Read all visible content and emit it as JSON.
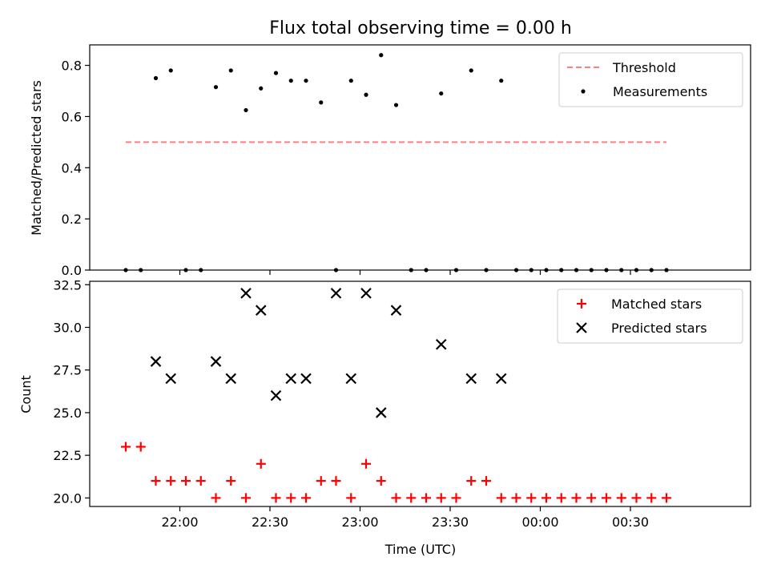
{
  "chart_data": [
    {
      "type": "scatter",
      "title": "Flux total observing time = 0.00 h",
      "ylabel": "Matched/Predicted stars",
      "ylim": [
        0,
        0.88
      ],
      "yticks": [
        "0.0",
        "0.2",
        "0.4",
        "0.6",
        "0.8"
      ],
      "ytick_values": [
        0,
        0.2,
        0.4,
        0.6,
        0.8
      ],
      "xlim": [
        "21:30",
        "01:10"
      ],
      "legend_position": "upper right",
      "series": [
        {
          "name": "Threshold",
          "kind": "line",
          "style": "dashed",
          "color": "#ff7f7f",
          "x": [
            "21:42",
            "00:42"
          ],
          "y": [
            0.5,
            0.5
          ]
        },
        {
          "name": "Measurements",
          "kind": "scatter",
          "marker": "dot",
          "color": "#000000",
          "x": [
            "21:42",
            "21:47",
            "21:52",
            "21:57",
            "22:02",
            "22:07",
            "22:12",
            "22:17",
            "22:22",
            "22:27",
            "22:32",
            "22:37",
            "22:42",
            "22:47",
            "22:52",
            "22:57",
            "23:02",
            "23:07",
            "23:12",
            "23:17",
            "23:22",
            "23:27",
            "23:32",
            "23:37",
            "23:42",
            "23:47",
            "23:52",
            "23:57",
            "00:02",
            "00:07",
            "00:12",
            "00:17",
            "00:22",
            "00:27",
            "00:32",
            "00:37",
            "00:42"
          ],
          "y": [
            0.0,
            0.0,
            0.75,
            0.78,
            0.0,
            0.0,
            0.715,
            0.78,
            0.625,
            0.71,
            0.77,
            0.74,
            0.74,
            0.655,
            0.0,
            0.74,
            0.685,
            0.84,
            0.645,
            0.0,
            0.0,
            0.69,
            0.0,
            0.78,
            0.0,
            0.74,
            0.0,
            0.0,
            0.0,
            0.0,
            0.0,
            0.0,
            0.0,
            0.0,
            0.0,
            0.0,
            0.0
          ]
        }
      ]
    },
    {
      "type": "scatter",
      "xlabel": "Time (UTC)",
      "ylabel": "Count",
      "ylim": [
        19.5,
        32.7
      ],
      "yticks": [
        "20.0",
        "22.5",
        "25.0",
        "27.5",
        "30.0",
        "32.5"
      ],
      "ytick_values": [
        20,
        22.5,
        25,
        27.5,
        30,
        32.5
      ],
      "xlim": [
        "21:30",
        "01:10"
      ],
      "xticks": [
        "22:00",
        "22:30",
        "23:00",
        "23:30",
        "00:00",
        "00:30"
      ],
      "legend_position": "upper right",
      "series": [
        {
          "name": "Matched stars",
          "marker": "plus",
          "color": "#ff0000",
          "x": [
            "21:42",
            "21:47",
            "21:52",
            "21:57",
            "22:02",
            "22:07",
            "22:12",
            "22:17",
            "22:22",
            "22:27",
            "22:32",
            "22:37",
            "22:42",
            "22:47",
            "22:52",
            "22:57",
            "23:02",
            "23:07",
            "23:12",
            "23:17",
            "23:22",
            "23:27",
            "23:32",
            "23:37",
            "23:42",
            "23:47",
            "23:52",
            "23:57",
            "00:02",
            "00:07",
            "00:12",
            "00:17",
            "00:22",
            "00:27",
            "00:32",
            "00:37",
            "00:42"
          ],
          "y": [
            23,
            23,
            21,
            21,
            21,
            21,
            20,
            21,
            20,
            22,
            20,
            20,
            20,
            21,
            21,
            20,
            22,
            21,
            20,
            20,
            20,
            20,
            20,
            21,
            21,
            20,
            20,
            20,
            20,
            20,
            20,
            20,
            20,
            20,
            20,
            20,
            20
          ]
        },
        {
          "name": "Predicted stars",
          "marker": "x",
          "color": "#000000",
          "x": [
            "21:52",
            "21:57",
            "22:12",
            "22:17",
            "22:22",
            "22:27",
            "22:32",
            "22:37",
            "22:42",
            "22:52",
            "22:57",
            "23:02",
            "23:07",
            "23:12",
            "23:27",
            "23:37",
            "23:47"
          ],
          "y": [
            28,
            27,
            28,
            27,
            32,
            31,
            26,
            27,
            27,
            32,
            27,
            32,
            25,
            31,
            29,
            27,
            27
          ]
        }
      ]
    }
  ]
}
